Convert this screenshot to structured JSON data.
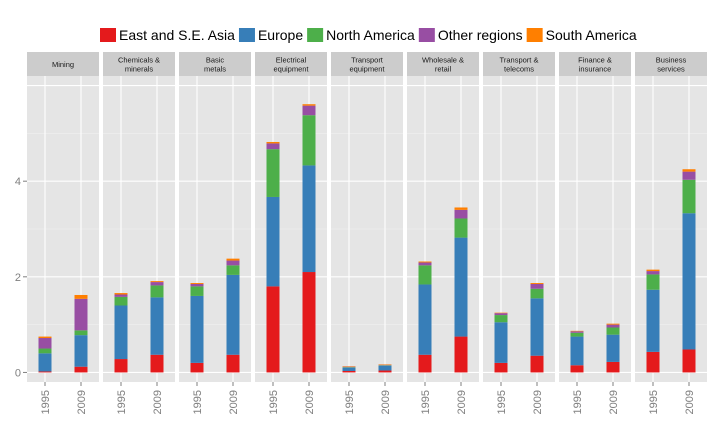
{
  "chart_data": {
    "type": "bar",
    "stacked": true,
    "faceted": true,
    "legend_position": "top",
    "grid": true,
    "ylim": [
      0,
      6
    ],
    "y_ticks": [
      0,
      2,
      4
    ],
    "categories": [
      "1995",
      "2009"
    ],
    "series": [
      {
        "name": "East and S.E. Asia",
        "color": "#E41A1C"
      },
      {
        "name": "Europe",
        "color": "#377EB8"
      },
      {
        "name": "North America",
        "color": "#4DAF4A"
      },
      {
        "name": "Other regions",
        "color": "#984EA3"
      },
      {
        "name": "South America",
        "color": "#FF7F00"
      }
    ],
    "panels": [
      {
        "title": [
          "Mining"
        ],
        "values": [
          [
            0.02,
            0.38,
            0.1,
            0.22,
            0.03
          ],
          [
            0.12,
            0.66,
            0.1,
            0.66,
            0.08
          ]
        ]
      },
      {
        "title": [
          "Chemicals &",
          "minerals"
        ],
        "values": [
          [
            0.28,
            1.12,
            0.18,
            0.05,
            0.03
          ],
          [
            0.37,
            1.2,
            0.25,
            0.07,
            0.02
          ]
        ]
      },
      {
        "title": [
          "Basic",
          "metals"
        ],
        "values": [
          [
            0.2,
            1.4,
            0.2,
            0.05,
            0.02
          ],
          [
            0.37,
            1.67,
            0.2,
            0.1,
            0.04
          ]
        ]
      },
      {
        "title": [
          "Electrical",
          "equipment"
        ],
        "values": [
          [
            1.8,
            1.87,
            1.0,
            0.12,
            0.03
          ],
          [
            2.1,
            2.23,
            1.05,
            0.2,
            0.03
          ]
        ]
      },
      {
        "title": [
          "Transport",
          "equipment"
        ],
        "values": [
          [
            0.03,
            0.07,
            0.01,
            0.01,
            0.01
          ],
          [
            0.04,
            0.1,
            0.01,
            0.01,
            0.01
          ]
        ]
      },
      {
        "title": [
          "Wholesale &",
          "retail"
        ],
        "values": [
          [
            0.37,
            1.47,
            0.4,
            0.06,
            0.02
          ],
          [
            0.75,
            2.07,
            0.4,
            0.18,
            0.05
          ]
        ]
      },
      {
        "title": [
          "Transport &",
          "telecoms"
        ],
        "values": [
          [
            0.2,
            0.85,
            0.15,
            0.04,
            0.01
          ],
          [
            0.35,
            1.2,
            0.2,
            0.1,
            0.02
          ]
        ]
      },
      {
        "title": [
          "Finance &",
          "insurance"
        ],
        "values": [
          [
            0.15,
            0.6,
            0.08,
            0.03,
            0.01
          ],
          [
            0.22,
            0.57,
            0.15,
            0.06,
            0.02
          ]
        ]
      },
      {
        "title": [
          "Business",
          "services"
        ],
        "values": [
          [
            0.43,
            1.3,
            0.32,
            0.07,
            0.03
          ],
          [
            0.48,
            2.85,
            0.7,
            0.17,
            0.05
          ]
        ]
      }
    ]
  }
}
